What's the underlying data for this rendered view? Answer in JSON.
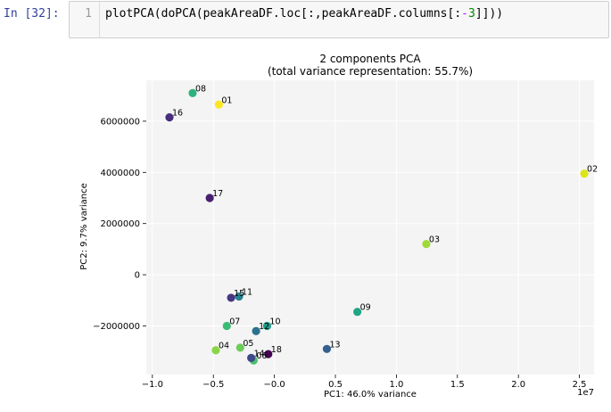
{
  "notebook": {
    "prompt": "In [32]:",
    "line_number": "1",
    "code_parts": {
      "a": "plotPCA(doPCA(peakAreaDF.loc[:,peakAreaDF.columns[:",
      "b": "-",
      "c": "3",
      "d": "]]))"
    }
  },
  "chart_data": {
    "type": "scatter",
    "title": "2 components PCA",
    "subtitle": "(total variance representation: 55.7%)",
    "xlabel": "PC1: 46.0% variance",
    "ylabel": "PC2: 9.7% variance",
    "x_offset_label": "1e7",
    "xlim": [
      -10500000,
      26200000
    ],
    "ylim": [
      -3900000,
      7600000
    ],
    "x_ticks": [
      -10000000,
      -5000000,
      0,
      5000000,
      10000000,
      15000000,
      20000000,
      25000000
    ],
    "x_tick_labels": [
      "−1.0",
      "−0.5",
      "−0.0",
      "0.5",
      "1.0",
      "1.5",
      "2.0",
      "2.5"
    ],
    "y_ticks": [
      -2000000,
      0,
      2000000,
      4000000,
      6000000
    ],
    "y_tick_labels": [
      "−2000000",
      "0",
      "2000000",
      "4000000",
      "6000000"
    ],
    "grid": true,
    "colors": {
      "background": "#f4f4f4",
      "grid": "#ffffff"
    },
    "points": [
      {
        "label": "01",
        "x": -4550000,
        "y": 6650000,
        "color": "#fde725"
      },
      {
        "label": "02",
        "x": 25400000,
        "y": 3950000,
        "color": "#dde318"
      },
      {
        "label": "03",
        "x": 12450000,
        "y": 1200000,
        "color": "#a0da39"
      },
      {
        "label": "04",
        "x": -4800000,
        "y": -2950000,
        "color": "#8bd646"
      },
      {
        "label": "05",
        "x": -2800000,
        "y": -2850000,
        "color": "#6ccd5a"
      },
      {
        "label": "06",
        "x": -1700000,
        "y": -3350000,
        "color": "#4ac16d"
      },
      {
        "label": "07",
        "x": -3900000,
        "y": -2000000,
        "color": "#3bbb75"
      },
      {
        "label": "08",
        "x": -6700000,
        "y": 7100000,
        "color": "#2db27d"
      },
      {
        "label": "09",
        "x": 6800000,
        "y": -1450000,
        "color": "#21a685"
      },
      {
        "label": "10",
        "x": -600000,
        "y": -2000000,
        "color": "#1f9e89"
      },
      {
        "label": "11",
        "x": -2900000,
        "y": -850000,
        "color": "#26828e"
      },
      {
        "label": "12",
        "x": -1500000,
        "y": -2200000,
        "color": "#2c728e"
      },
      {
        "label": "13",
        "x": 4300000,
        "y": -2900000,
        "color": "#355f8d"
      },
      {
        "label": "14",
        "x": -1900000,
        "y": -3250000,
        "color": "#3e4a89"
      },
      {
        "label": "15",
        "x": -3550000,
        "y": -900000,
        "color": "#453781"
      },
      {
        "label": "16",
        "x": -8600000,
        "y": 6150000,
        "color": "#472d7b"
      },
      {
        "label": "17",
        "x": -5300000,
        "y": 3000000,
        "color": "#481f70"
      },
      {
        "label": "18",
        "x": -500000,
        "y": -3100000,
        "color": "#440154"
      }
    ]
  }
}
